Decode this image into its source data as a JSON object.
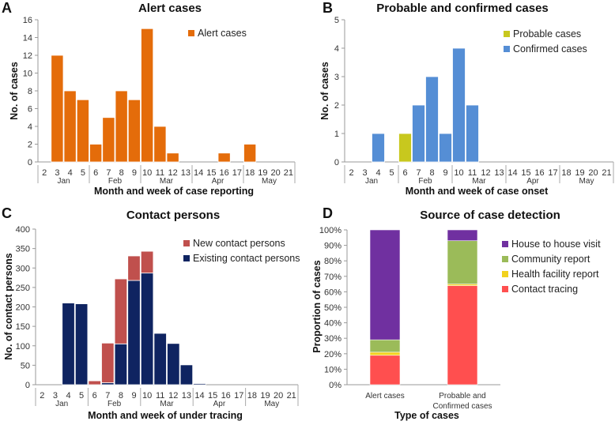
{
  "chart_data": [
    {
      "panel": "A",
      "type": "bar",
      "title": "Alert cases",
      "xlabel": "Month and week of case reporting",
      "ylabel": "No. of cases",
      "ylim": [
        0,
        16
      ],
      "yticks": [
        0,
        2,
        4,
        6,
        8,
        10,
        12,
        14,
        16
      ],
      "categories": [
        "2",
        "3",
        "4",
        "5",
        "6",
        "7",
        "8",
        "9",
        "10",
        "11",
        "12",
        "13",
        "14",
        "15",
        "16",
        "17",
        "18",
        "19",
        "20",
        "21"
      ],
      "months": [
        {
          "label": "Jan",
          "weeks": [
            "2",
            "5"
          ]
        },
        {
          "label": "Feb",
          "weeks": [
            "6",
            "9"
          ]
        },
        {
          "label": "Mar",
          "weeks": [
            "10",
            "13"
          ]
        },
        {
          "label": "Apr",
          "weeks": [
            "14",
            "17"
          ]
        },
        {
          "label": "May",
          "weeks": [
            "18",
            "21"
          ]
        }
      ],
      "legend_position": "top-right",
      "series": [
        {
          "name": "Alert cases",
          "color": "#E46C0A",
          "values": [
            0,
            12,
            8,
            7,
            2,
            5,
            8,
            7,
            15,
            4,
            1,
            0,
            0,
            0,
            1,
            0,
            2,
            0,
            0,
            0
          ]
        }
      ]
    },
    {
      "panel": "B",
      "type": "bar",
      "stacked": true,
      "title": "Probable and confirmed cases",
      "xlabel": "Month and week of case onset",
      "ylabel": "No. of cases",
      "ylim": [
        0,
        5
      ],
      "yticks": [
        0,
        1,
        2,
        3,
        4,
        5
      ],
      "categories": [
        "2",
        "3",
        "4",
        "5",
        "6",
        "7",
        "8",
        "9",
        "10",
        "11",
        "12",
        "13",
        "14",
        "15",
        "16",
        "17",
        "18",
        "19",
        "20",
        "21"
      ],
      "months": [
        {
          "label": "Jan",
          "weeks": [
            "2",
            "5"
          ]
        },
        {
          "label": "Feb",
          "weeks": [
            "6",
            "9"
          ]
        },
        {
          "label": "Mar",
          "weeks": [
            "10",
            "13"
          ]
        },
        {
          "label": "Apr",
          "weeks": [
            "14",
            "17"
          ]
        },
        {
          "label": "May",
          "weeks": [
            "18",
            "21"
          ]
        }
      ],
      "legend_position": "top-right",
      "series": [
        {
          "name": "Probable cases",
          "color": "#C8C81E",
          "values": [
            0,
            0,
            0,
            0,
            1,
            0,
            0,
            0,
            0,
            0,
            0,
            0,
            0,
            0,
            0,
            0,
            0,
            0,
            0,
            0
          ]
        },
        {
          "name": "Confirmed cases",
          "color": "#558ED5",
          "values": [
            0,
            0,
            1,
            0,
            0,
            2,
            3,
            1,
            4,
            2,
            0,
            0,
            0,
            0,
            0,
            0,
            0,
            0,
            0,
            0
          ]
        }
      ]
    },
    {
      "panel": "C",
      "type": "bar",
      "stacked": true,
      "title": "Contact persons",
      "xlabel": "Month and week of under tracing",
      "ylabel": "No. of contact persons",
      "ylim": [
        0,
        400
      ],
      "yticks": [
        0,
        50,
        100,
        150,
        200,
        250,
        300,
        350,
        400
      ],
      "categories": [
        "2",
        "3",
        "4",
        "5",
        "6",
        "7",
        "8",
        "9",
        "10",
        "11",
        "12",
        "13",
        "14",
        "15",
        "16",
        "17",
        "18",
        "19",
        "20",
        "21"
      ],
      "months": [
        {
          "label": "Jan",
          "weeks": [
            "2",
            "5"
          ]
        },
        {
          "label": "Feb",
          "weeks": [
            "6",
            "9"
          ]
        },
        {
          "label": "Mar",
          "weeks": [
            "10",
            "13"
          ]
        },
        {
          "label": "Apr",
          "weeks": [
            "14",
            "17"
          ]
        },
        {
          "label": "May",
          "weeks": [
            "18",
            "21"
          ]
        }
      ],
      "legend_position": "top-right",
      "series": [
        {
          "name": "Existing contact persons",
          "color": "#0F2461",
          "values": [
            0,
            0,
            210,
            208,
            0,
            5,
            105,
            268,
            287,
            132,
            106,
            51,
            3,
            0,
            0,
            0,
            0,
            0,
            0,
            0
          ]
        },
        {
          "name": "New contact persons",
          "color": "#C0504D",
          "values": [
            0,
            0,
            0,
            0,
            10,
            102,
            167,
            63,
            56,
            0,
            0,
            0,
            0,
            0,
            0,
            0,
            0,
            0,
            0,
            0
          ]
        }
      ]
    },
    {
      "panel": "D",
      "type": "bar",
      "stacked": true,
      "percent": true,
      "title": "Source of case detection",
      "xlabel": "Type of cases",
      "ylabel": "Proportion of cases",
      "ylim": [
        0,
        100
      ],
      "yticks": [
        "0%",
        "10%",
        "20%",
        "30%",
        "40%",
        "50%",
        "60%",
        "70%",
        "80%",
        "90%",
        "100%"
      ],
      "categories": [
        [
          "Alert cases"
        ],
        [
          "Probable and",
          "Confirmed cases"
        ]
      ],
      "legend_position": "right",
      "series": [
        {
          "name": "Contact tracing",
          "color": "#FF4F4F",
          "values": [
            19,
            64
          ]
        },
        {
          "name": "Health facility report",
          "color": "#F2D21E",
          "values": [
            2,
            1
          ]
        },
        {
          "name": "Community report",
          "color": "#9BBB59",
          "values": [
            8,
            28
          ]
        },
        {
          "name": "House to house visit",
          "color": "#7030A0",
          "values": [
            71,
            7
          ]
        }
      ]
    }
  ]
}
